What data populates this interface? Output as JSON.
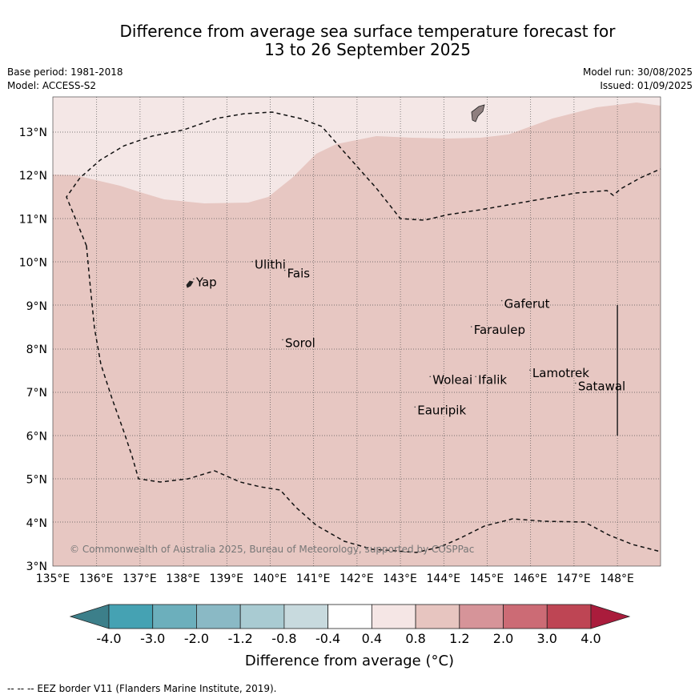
{
  "title_line1": "Difference from average sea surface temperature forecast for",
  "title_line2": "13 to 26 September 2025",
  "base_period": "Base period: 1981-2018",
  "model": "Model: ACCESS-S2",
  "model_run": "Model run: 30/08/2025",
  "issued": "Issued: 01/09/2025",
  "copyright": "© Commonwealth of Australia 2025, Bureau of Meteorology, supported by COSPPac",
  "x_ticks": [
    "135°E",
    "136°E",
    "137°E",
    "138°E",
    "139°E",
    "140°E",
    "141°E",
    "142°E",
    "143°E",
    "144°E",
    "145°E",
    "146°E",
    "147°E",
    "148°E"
  ],
  "y_ticks": [
    "13°N",
    "12°N",
    "11°N",
    "10°N",
    "9°N",
    "8°N",
    "7°N",
    "6°N",
    "5°N",
    "4°N",
    "3°N"
  ],
  "places": [
    {
      "name": "Yap",
      "lon": 138.3,
      "lat": 9.45
    },
    {
      "name": "Ulithi",
      "lon": 139.65,
      "lat": 9.85
    },
    {
      "name": "Fais",
      "lon": 140.4,
      "lat": 9.65
    },
    {
      "name": "Gaferut",
      "lon": 145.4,
      "lat": 8.95
    },
    {
      "name": "Faraulep",
      "lon": 144.7,
      "lat": 8.35
    },
    {
      "name": "Sorol",
      "lon": 140.35,
      "lat": 8.05
    },
    {
      "name": "Lamotrek",
      "lon": 146.05,
      "lat": 7.35
    },
    {
      "name": "Woleai",
      "lon": 143.75,
      "lat": 7.2
    },
    {
      "name": "Ifalik",
      "lon": 144.8,
      "lat": 7.2
    },
    {
      "name": "Satawal",
      "lon": 147.1,
      "lat": 7.05
    },
    {
      "name": "Eauripik",
      "lon": 143.4,
      "lat": 6.5
    }
  ],
  "colorbar": {
    "labels": [
      "-4.0",
      "-3.0",
      "-2.0",
      "-1.2",
      "-0.8",
      "-0.4",
      "0.4",
      "0.8",
      "1.2",
      "2.0",
      "3.0",
      "4.0"
    ],
    "colors": [
      "#3c7f8a",
      "#45a2b3",
      "#6cafbc",
      "#8ab9c5",
      "#a9cbd2",
      "#c8dade",
      "#ffffff",
      "#f5e6e5",
      "#e7c5c0",
      "#d69499",
      "#cc6b75",
      "#be4554",
      "#aa1c3c"
    ],
    "title": "Difference from average (°C)"
  },
  "legend_footnote": "--  --  -- EEZ border V11 (Flanders Marine Institute, 2019)."
}
